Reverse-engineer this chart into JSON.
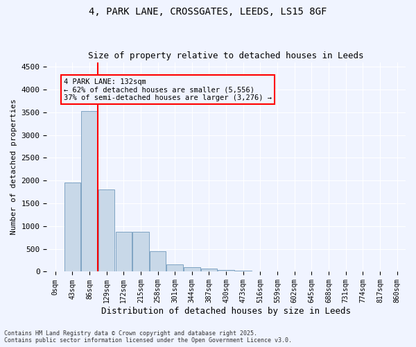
{
  "title_line1": "4, PARK LANE, CROSSGATES, LEEDS, LS15 8GF",
  "title_line2": "Size of property relative to detached houses in Leeds",
  "xlabel": "Distribution of detached houses by size in Leeds",
  "ylabel": "Number of detached properties",
  "bar_color": "#c8d8e8",
  "bar_edge_color": "#5a8ab0",
  "bar_edge_width": 0.5,
  "vline_x": 3,
  "vline_color": "red",
  "annotation_text": "4 PARK LANE: 132sqm\n← 62% of detached houses are smaller (5,556)\n37% of semi-detached houses are larger (3,276) →",
  "annotation_box_color": "red",
  "categories": [
    "0sqm",
    "43sqm",
    "86sqm",
    "129sqm",
    "172sqm",
    "215sqm",
    "258sqm",
    "301sqm",
    "344sqm",
    "387sqm",
    "430sqm",
    "473sqm",
    "516sqm",
    "559sqm",
    "602sqm",
    "645sqm",
    "688sqm",
    "731sqm",
    "774sqm",
    "817sqm",
    "860sqm"
  ],
  "bar_heights": [
    0,
    1950,
    3520,
    1800,
    870,
    870,
    450,
    160,
    100,
    65,
    40,
    20,
    10,
    5,
    3,
    2,
    1,
    0,
    0,
    0,
    0
  ],
  "ylim": [
    0,
    4600
  ],
  "yticks": [
    0,
    500,
    1000,
    1500,
    2000,
    2500,
    3000,
    3500,
    4000,
    4500
  ],
  "background_color": "#f0f4ff",
  "grid_color": "#ffffff",
  "footnote": "Contains HM Land Registry data © Crown copyright and database right 2025.\nContains public sector information licensed under the Open Government Licence v3.0."
}
